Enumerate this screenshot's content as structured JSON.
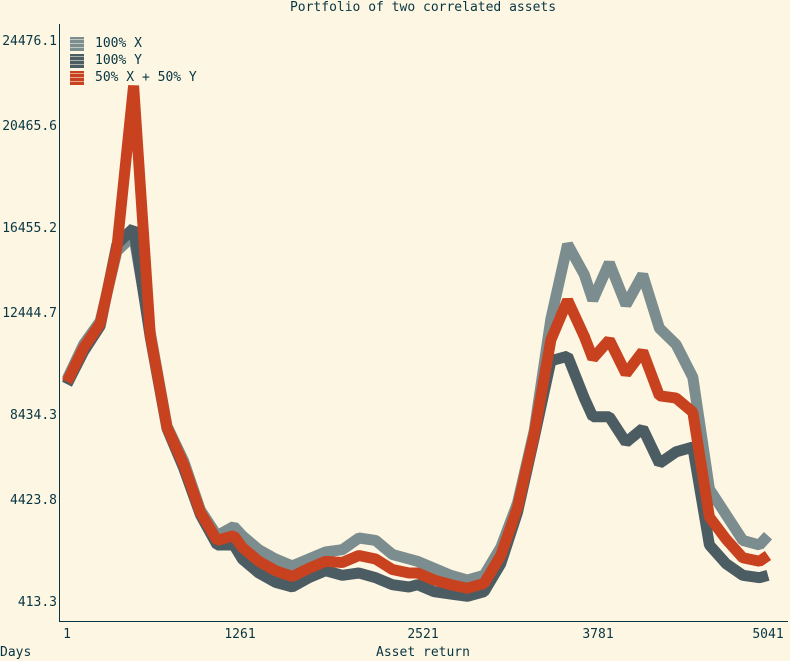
{
  "chart_data": {
    "type": "line",
    "title": "Portfolio of two correlated assets",
    "xlabel": "Asset return",
    "ylabel": "",
    "corner_label": "Days",
    "xlim": [
      1,
      5041
    ],
    "ylim": [
      413.3,
      24476.1
    ],
    "x_ticks": [
      "1",
      "1261",
      "2521",
      "3781",
      "5041"
    ],
    "y_ticks": [
      "24476.1",
      "20465.6",
      "16455.2",
      "12444.7",
      "8434.3",
      "4423.8",
      "413.3"
    ],
    "legend_position": "upper left",
    "grid": false,
    "x": [
      1,
      120,
      240,
      360,
      480,
      600,
      720,
      840,
      960,
      1080,
      1200,
      1261,
      1380,
      1500,
      1620,
      1740,
      1860,
      1980,
      2100,
      2220,
      2340,
      2460,
      2521,
      2640,
      2760,
      2880,
      3000,
      3120,
      3240,
      3360,
      3480,
      3600,
      3720,
      3781,
      3900,
      4020,
      4140,
      4260,
      4380,
      4500,
      4620,
      4740,
      4860,
      4980,
      5041
    ],
    "series": [
      {
        "name": "100% X",
        "color": "#7b8d8e",
        "values": [
          10000,
          11500,
          12500,
          15500,
          16200,
          12000,
          8000,
          6500,
          4400,
          3300,
          3700,
          3300,
          2700,
          2300,
          2000,
          2300,
          2600,
          2700,
          3200,
          3100,
          2500,
          2300,
          2200,
          1900,
          1600,
          1400,
          1600,
          2800,
          4700,
          7800,
          12600,
          15800,
          14500,
          13400,
          15000,
          13200,
          14500,
          12200,
          11500,
          10100,
          5300,
          4200,
          3100,
          2900,
          3300
        ]
      },
      {
        "name": "100% Y",
        "color": "#4c5c63",
        "values": [
          9800,
          11200,
          12300,
          15800,
          16500,
          11800,
          7900,
          6200,
          4200,
          2900,
          2900,
          2300,
          1700,
          1300,
          1100,
          1500,
          1800,
          1600,
          1700,
          1500,
          1200,
          1100,
          1200,
          900,
          800,
          700,
          900,
          2100,
          4300,
          7500,
          10800,
          11000,
          9200,
          8400,
          8400,
          7300,
          7900,
          6400,
          6900,
          7100,
          2900,
          2100,
          1600,
          1500,
          1600
        ]
      },
      {
        "name": "50% X + 50% Y",
        "color": "#c8421f",
        "values": [
          9900,
          11350,
          12400,
          15650,
          22600,
          11900,
          7950,
          6350,
          4300,
          3100,
          3300,
          2800,
          2200,
          1800,
          1550,
          1900,
          2200,
          2150,
          2450,
          2300,
          1850,
          1700,
          1700,
          1400,
          1200,
          1050,
          1250,
          2450,
          4500,
          7650,
          11700,
          13400,
          11850,
          10900,
          11700,
          10250,
          11200,
          9300,
          9200,
          8600,
          4100,
          3150,
          2350,
          2200,
          2450
        ]
      }
    ]
  },
  "legend": [
    {
      "label": "100% X",
      "color": "#7b8d8e"
    },
    {
      "label": "100% Y",
      "color": "#4c5c63"
    },
    {
      "label": "50% X + 50% Y",
      "color": "#c8421f"
    }
  ]
}
